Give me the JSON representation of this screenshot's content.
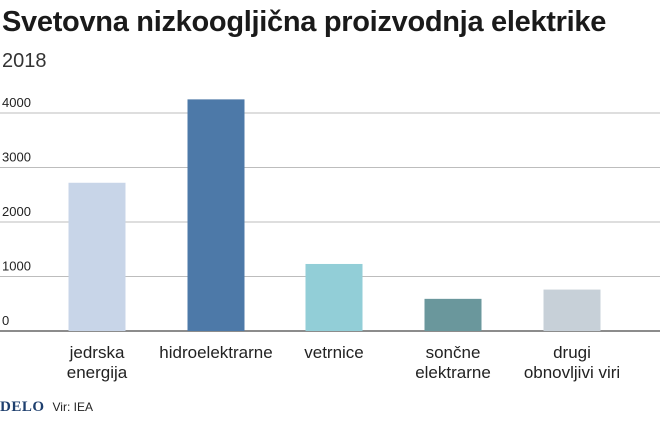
{
  "header": {
    "title": "Svetovna nizkoogljična proizvodnja elektrike",
    "subtitle": "2018"
  },
  "footer": {
    "logo": "DELO",
    "source": "Vir: IEA"
  },
  "chart_data": {
    "type": "bar",
    "title": "Svetovna nizkoogljična proizvodnja elektrike",
    "subtitle": "2018",
    "categories": [
      [
        "jedrska",
        "energija"
      ],
      [
        "hidroelektrarne"
      ],
      [
        "vetrnice"
      ],
      [
        "sončne",
        "elektrarne"
      ],
      [
        "drugi",
        "obnovljivi viri"
      ]
    ],
    "values": [
      2720,
      4250,
      1230,
      590,
      760
    ],
    "bar_colors": [
      "#c8d5e8",
      "#4d79a8",
      "#92ced7",
      "#6a979c",
      "#c7d0d8"
    ],
    "yticks": [
      0,
      1000,
      2000,
      3000,
      4000
    ],
    "ylim": [
      0,
      4300
    ],
    "grid": true,
    "xlabel": "",
    "ylabel": ""
  }
}
